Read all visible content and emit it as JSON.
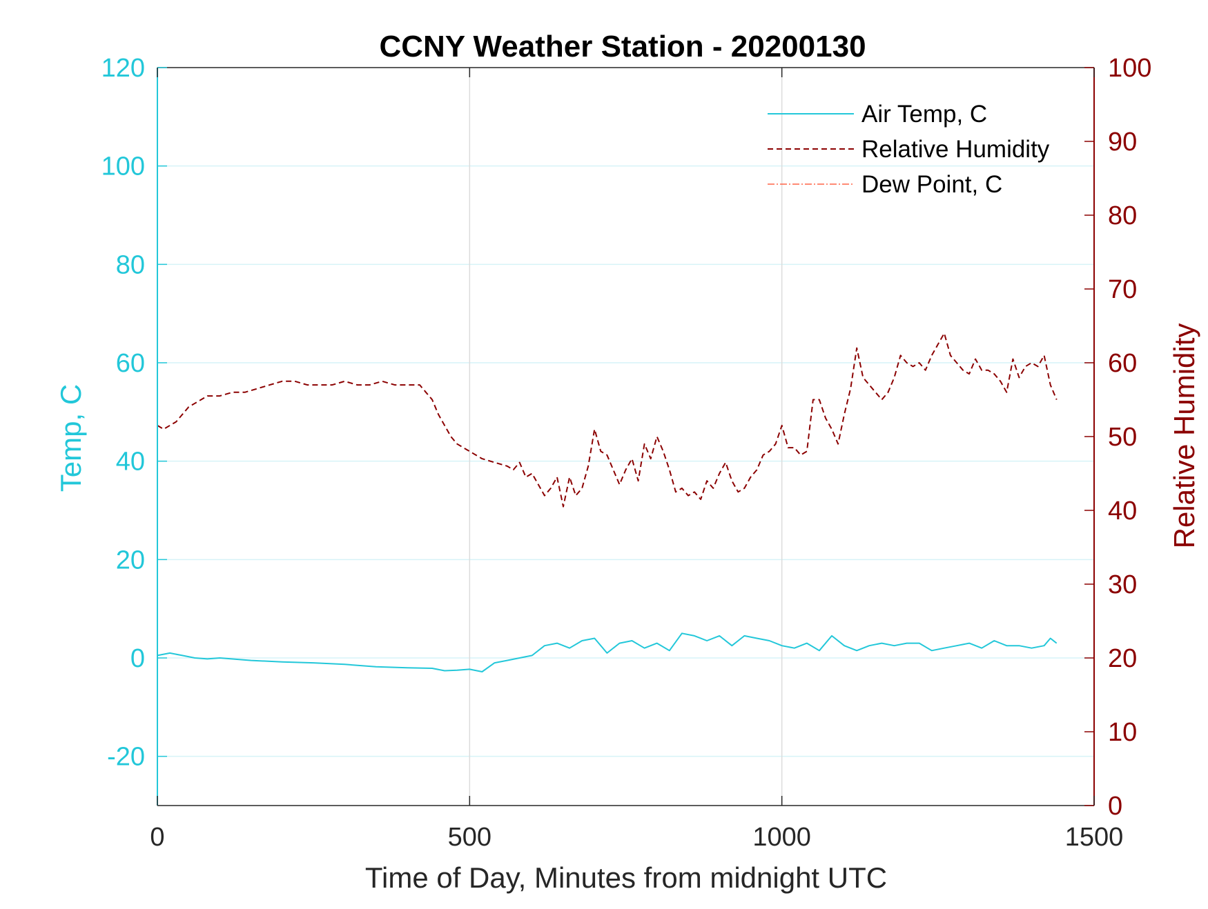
{
  "chart_data": {
    "type": "line",
    "title": "CCNY Weather Station - 20200130",
    "xlabel": "Time of Day, Minutes from midnight UTC",
    "ylabel_left": "Temp, C",
    "ylabel_right": "Relative Humidity",
    "xlim": [
      0,
      1500
    ],
    "ylim_left": [
      -30,
      120
    ],
    "ylim_right": [
      0,
      100
    ],
    "x_ticks": [
      "0",
      "500",
      "1000",
      "1500"
    ],
    "y_ticks_left": [
      "-20",
      "0",
      "20",
      "40",
      "60",
      "80",
      "100",
      "120"
    ],
    "y_ticks_right": [
      "0",
      "10",
      "20",
      "30",
      "40",
      "50",
      "60",
      "70",
      "80",
      "90",
      "100"
    ],
    "grid": true,
    "legend_position": "top-right",
    "colors": {
      "air_temp": "#22c7d9",
      "relative_humidity": "#8b0000",
      "dew_point": "#ff6347",
      "grid_horizontal": "#d6f3f8",
      "grid_vertical": "#dcdcdc"
    },
    "series": [
      {
        "name": "Air Temp, C",
        "axis": "left",
        "style": "solid",
        "x": [
          0,
          20,
          40,
          60,
          80,
          100,
          150,
          200,
          250,
          300,
          350,
          400,
          440,
          460,
          480,
          500,
          520,
          540,
          560,
          580,
          600,
          620,
          640,
          660,
          680,
          700,
          720,
          740,
          760,
          780,
          800,
          820,
          840,
          860,
          880,
          900,
          920,
          940,
          960,
          980,
          1000,
          1020,
          1040,
          1060,
          1080,
          1100,
          1120,
          1140,
          1160,
          1180,
          1200,
          1220,
          1240,
          1260,
          1280,
          1300,
          1320,
          1340,
          1360,
          1380,
          1400,
          1420,
          1430,
          1440
        ],
        "y": [
          0.5,
          1.0,
          0.5,
          0.0,
          -0.2,
          0.0,
          -0.5,
          -0.8,
          -1.0,
          -1.3,
          -1.8,
          -2.0,
          -2.1,
          -2.6,
          -2.5,
          -2.3,
          -2.8,
          -1.0,
          -0.5,
          0.0,
          0.5,
          2.5,
          3.0,
          2.0,
          3.5,
          4.0,
          1.0,
          3.0,
          3.5,
          2.0,
          3.0,
          1.5,
          5.0,
          4.5,
          3.5,
          4.5,
          2.5,
          4.5,
          4.0,
          3.5,
          2.5,
          2.0,
          3.0,
          1.5,
          4.5,
          2.5,
          1.5,
          2.5,
          3.0,
          2.5,
          3.0,
          3.0,
          1.5,
          2.0,
          2.5,
          3.0,
          2.0,
          3.5,
          2.5,
          2.5,
          2.0,
          2.5,
          4.0,
          3.0
        ]
      },
      {
        "name": "Relative Humidity",
        "axis": "right",
        "style": "dashed",
        "x": [
          0,
          10,
          20,
          30,
          40,
          50,
          60,
          70,
          80,
          100,
          120,
          140,
          160,
          180,
          200,
          220,
          240,
          260,
          280,
          300,
          320,
          340,
          360,
          380,
          400,
          420,
          430,
          440,
          450,
          460,
          470,
          480,
          490,
          500,
          520,
          540,
          560,
          570,
          580,
          590,
          600,
          610,
          620,
          630,
          640,
          650,
          660,
          670,
          680,
          690,
          700,
          710,
          720,
          730,
          740,
          750,
          760,
          770,
          780,
          790,
          800,
          810,
          820,
          830,
          840,
          850,
          860,
          870,
          880,
          890,
          900,
          910,
          920,
          930,
          940,
          950,
          960,
          970,
          980,
          990,
          1000,
          1010,
          1020,
          1030,
          1040,
          1050,
          1060,
          1070,
          1080,
          1090,
          1100,
          1110,
          1120,
          1130,
          1140,
          1150,
          1160,
          1170,
          1180,
          1190,
          1200,
          1210,
          1220,
          1230,
          1240,
          1250,
          1260,
          1270,
          1280,
          1290,
          1300,
          1310,
          1320,
          1330,
          1340,
          1350,
          1360,
          1370,
          1380,
          1390,
          1400,
          1410,
          1420,
          1430,
          1440
        ],
        "y": [
          51.5,
          51.0,
          51.5,
          52.0,
          53.0,
          54.0,
          54.5,
          55.0,
          55.5,
          55.5,
          56.0,
          56.0,
          56.5,
          57.0,
          57.5,
          57.5,
          57.0,
          57.0,
          57.0,
          57.5,
          57.0,
          57.0,
          57.5,
          57.0,
          57.0,
          57.0,
          56.0,
          55.0,
          53.0,
          51.5,
          50.0,
          49.0,
          48.5,
          48.0,
          47.0,
          46.5,
          46.0,
          45.5,
          46.5,
          44.5,
          45.0,
          43.5,
          42.0,
          43.0,
          44.5,
          40.5,
          44.5,
          42.0,
          43.0,
          46.0,
          51.0,
          48.0,
          47.5,
          45.5,
          43.5,
          45.5,
          47.0,
          44.0,
          49.0,
          47.0,
          50.0,
          48.0,
          45.5,
          42.5,
          43.0,
          42.0,
          42.5,
          41.5,
          44.0,
          43.0,
          45.0,
          46.5,
          44.0,
          42.5,
          43.0,
          44.5,
          45.5,
          47.5,
          48.0,
          49.0,
          51.5,
          48.5,
          48.5,
          47.5,
          48.0,
          55.0,
          55.0,
          52.5,
          51.0,
          49.0,
          53.0,
          56.5,
          62.0,
          58.0,
          57.0,
          56.0,
          55.0,
          56.0,
          58.0,
          61.0,
          60.0,
          59.5,
          60.0,
          59.0,
          61.0,
          62.5,
          64.0,
          61.0,
          60.0,
          59.0,
          58.5,
          60.5,
          59.0,
          59.0,
          58.5,
          57.5,
          56.0,
          60.5,
          58.0,
          59.5,
          60.0,
          59.5,
          61.0,
          57.0,
          55.0
        ]
      },
      {
        "name": "Dew Point, C",
        "axis": "left",
        "style": "dash-dot",
        "x": [],
        "y": []
      }
    ]
  }
}
